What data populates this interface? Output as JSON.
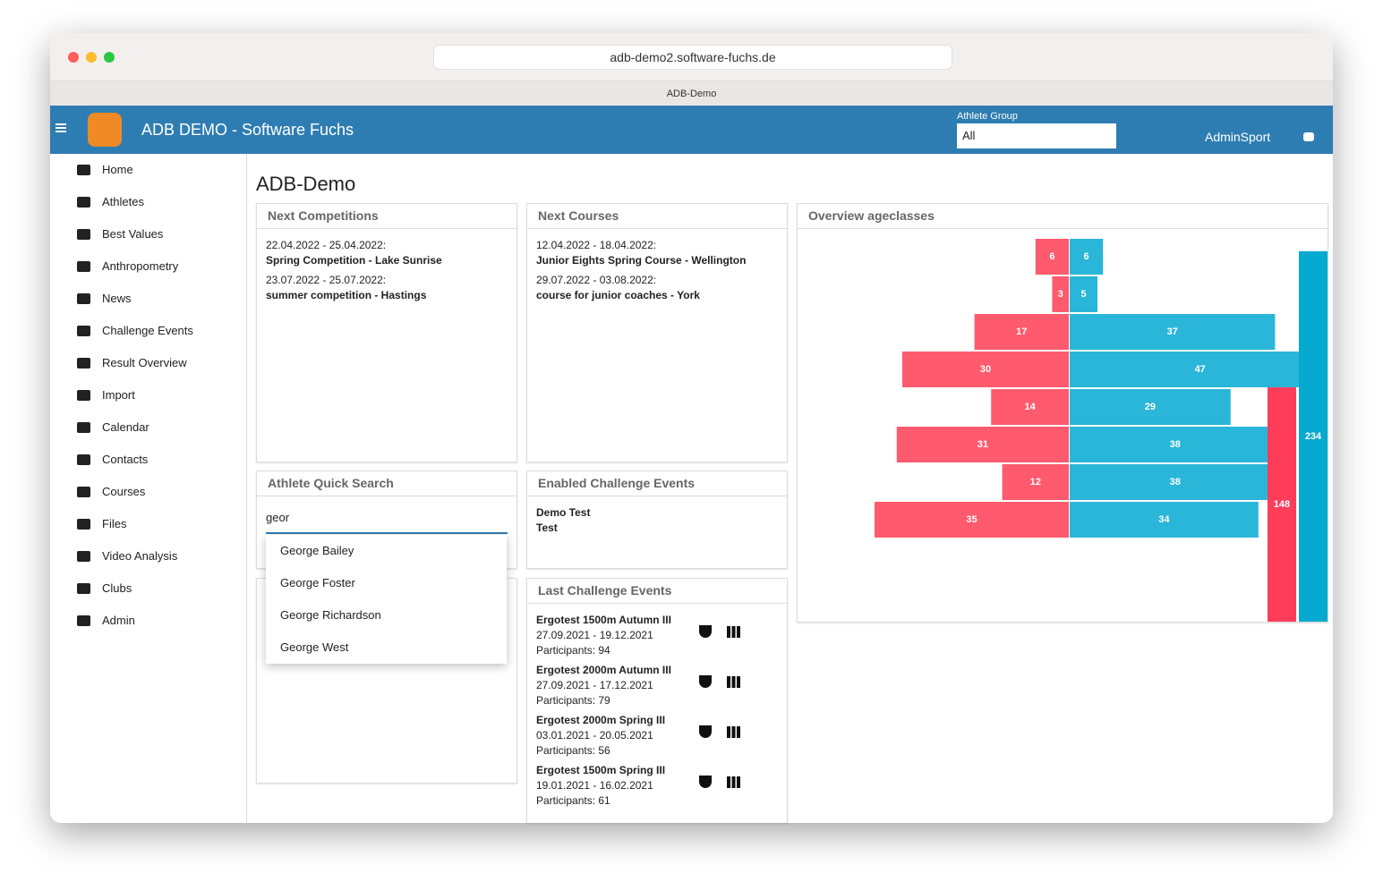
{
  "browser": {
    "url": "adb-demo2.software-fuchs.de",
    "tab": "ADB-Demo"
  },
  "header": {
    "title": "ADB DEMO - Software Fuchs",
    "group_label": "Athlete Group",
    "group_value": "All",
    "user": "AdminSport"
  },
  "sidebar": [
    "Home",
    "Athletes",
    "Best Values",
    "Anthropometry",
    "News",
    "Challenge Events",
    "Result Overview",
    "Import",
    "Calendar",
    "Contacts",
    "Courses",
    "Files",
    "Video Analysis",
    "Clubs",
    "Admin"
  ],
  "page_title": "ADB-Demo",
  "competitions": {
    "title": "Next Competitions",
    "items": [
      {
        "date": "22.04.2022 - 25.04.2022:",
        "name": "Spring Competition - Lake Sunrise"
      },
      {
        "date": "23.07.2022 - 25.07.2022:",
        "name": "summer competition - Hastings"
      }
    ]
  },
  "courses": {
    "title": "Next Courses",
    "items": [
      {
        "date": "12.04.2022 - 18.04.2022:",
        "name": "Junior Eights Spring Course - Wellington"
      },
      {
        "date": "29.07.2022 - 03.08.2022:",
        "name": "course for junior coaches - York"
      }
    ]
  },
  "quick_search": {
    "title": "Athlete Quick Search",
    "query": "geor",
    "suggestions": [
      "George Bailey",
      "George Foster",
      "George Richardson",
      "George West"
    ]
  },
  "enabled_challenges": {
    "title": "Enabled Challenge Events",
    "items": [
      "Demo Test",
      "Test"
    ]
  },
  "last_challenges": {
    "title": "Last Challenge Events",
    "items": [
      {
        "name": "Ergotest 1500m Autumn III",
        "dates": "27.09.2021 - 19.12.2021",
        "participants": "Participants: 94"
      },
      {
        "name": "Ergotest 2000m Autumn III",
        "dates": "27.09.2021 - 17.12.2021",
        "participants": "Participants: 79"
      },
      {
        "name": "Ergotest 2000m Spring III",
        "dates": "03.01.2021 - 20.05.2021",
        "participants": "Participants: 56"
      },
      {
        "name": "Ergotest 1500m Spring III",
        "dates": "19.01.2021 - 16.02.2021",
        "participants": "Participants: 61"
      }
    ]
  },
  "ageclasses": {
    "title": "Overview ageclasses",
    "type": "bar",
    "series": [
      {
        "color": "#ff5a6e",
        "values": [
          6,
          3,
          17,
          30,
          14,
          31,
          12,
          35
        ]
      },
      {
        "color": "#29b6d8",
        "values": [
          6,
          5,
          37,
          47,
          29,
          38,
          38,
          34
        ]
      }
    ],
    "totals": {
      "colors": [
        "#ff3d5a",
        "#06a9cf"
      ],
      "values": [
        148,
        234
      ]
    }
  }
}
